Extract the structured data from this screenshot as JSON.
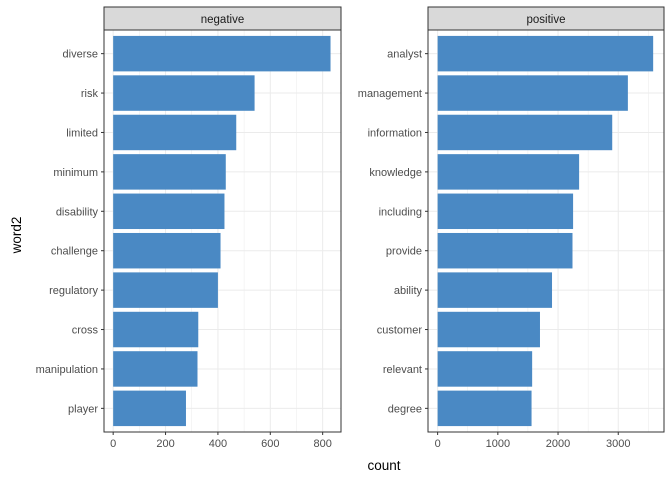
{
  "chart_data": {
    "type": "bar",
    "orientation": "horizontal",
    "xlabel": "count",
    "ylabel": "word2",
    "grid": true,
    "bar_color": "#4a89c4",
    "panel_border_color": "#333333",
    "strip_fill": "#d9d9d9",
    "gridline_color": "#ebebeb",
    "panels": [
      {
        "title": "negative",
        "xlim": [
          -35,
          870
        ],
        "xticks": [
          0,
          200,
          400,
          600,
          800
        ],
        "categories": [
          "diverse",
          "risk",
          "limited",
          "minimum",
          "disability",
          "challenge",
          "regulatory",
          "cross",
          "manipulation",
          "player"
        ],
        "values": [
          830,
          540,
          470,
          430,
          425,
          410,
          400,
          325,
          322,
          278
        ]
      },
      {
        "title": "positive",
        "xlim": [
          -160,
          3760
        ],
        "xticks": [
          0,
          1000,
          2000,
          3000
        ],
        "categories": [
          "analyst",
          "management",
          "information",
          "knowledge",
          "including",
          "provide",
          "ability",
          "customer",
          "relevant",
          "degree"
        ],
        "values": [
          3580,
          3160,
          2900,
          2350,
          2250,
          2240,
          1900,
          1700,
          1570,
          1560
        ]
      }
    ]
  }
}
